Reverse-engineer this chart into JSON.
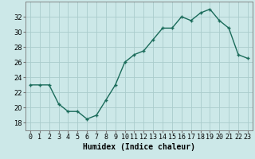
{
  "x": [
    0,
    1,
    2,
    3,
    4,
    5,
    6,
    7,
    8,
    9,
    10,
    11,
    12,
    13,
    14,
    15,
    16,
    17,
    18,
    19,
    20,
    21,
    22,
    23
  ],
  "y": [
    23,
    23,
    23,
    20.5,
    19.5,
    19.5,
    18.5,
    19,
    21,
    23,
    26,
    27,
    27.5,
    29,
    30.5,
    30.5,
    32,
    31.5,
    32.5,
    33,
    31.5,
    30.5,
    27,
    26.5
  ],
  "xlabel": "Humidex (Indice chaleur)",
  "ylim": [
    17,
    34
  ],
  "yticks": [
    18,
    20,
    22,
    24,
    26,
    28,
    30,
    32
  ],
  "xlim": [
    -0.5,
    23.5
  ],
  "line_color": "#1a6b5a",
  "bg_color": "#cce8e8",
  "grid_color": "#aacccc",
  "xlabel_fontsize": 7,
  "tick_fontsize": 6
}
